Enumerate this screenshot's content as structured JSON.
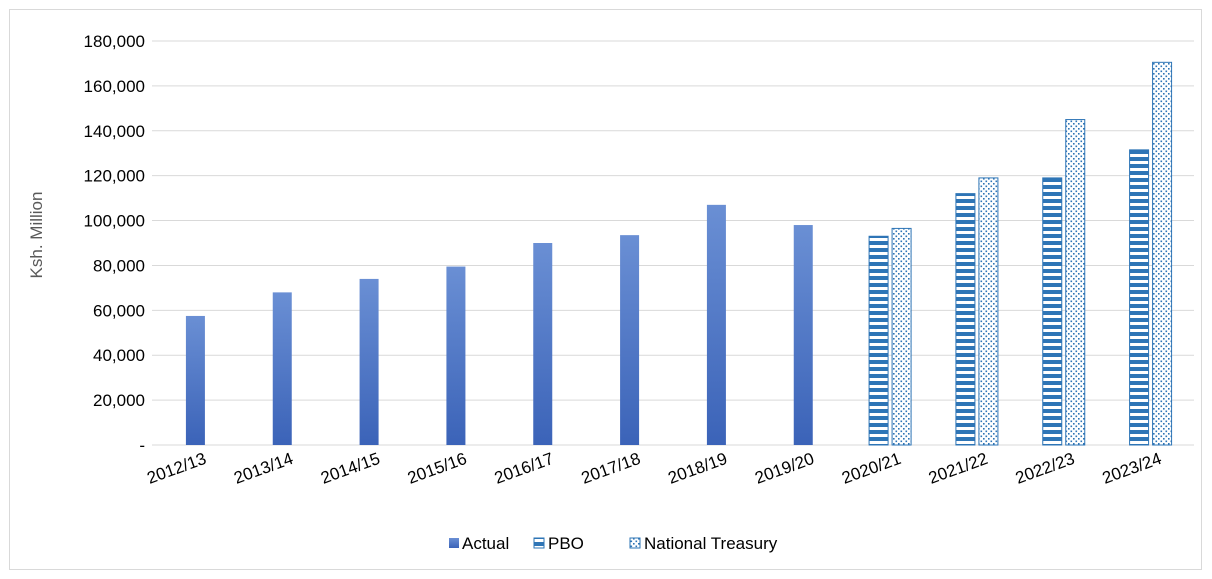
{
  "chart_data": {
    "type": "bar",
    "title": "",
    "xlabel": "",
    "ylabel": "Ksh. Million",
    "ylim": [
      0,
      180000
    ],
    "y_ticks": [
      {
        "value": 0,
        "label": "-"
      },
      {
        "value": 20000,
        "label": "20,000"
      },
      {
        "value": 40000,
        "label": "40,000"
      },
      {
        "value": 60000,
        "label": "60,000"
      },
      {
        "value": 80000,
        "label": "80,000"
      },
      {
        "value": 100000,
        "label": "100,000"
      },
      {
        "value": 120000,
        "label": "120,000"
      },
      {
        "value": 140000,
        "label": "140,000"
      },
      {
        "value": 160000,
        "label": "160,000"
      },
      {
        "value": 180000,
        "label": "180,000"
      }
    ],
    "categories": [
      "2012/13",
      "2013/14",
      "2014/15",
      "2015/16",
      "2016/17",
      "2017/18",
      "2018/19",
      "2019/20",
      "2020/21",
      "2021/22",
      "2022/23",
      "2023/24"
    ],
    "series": [
      {
        "name": "Actual",
        "pattern": "solid",
        "color": "#4472c4",
        "values": [
          57500,
          68000,
          74000,
          79500,
          90000,
          93500,
          107000,
          98000,
          null,
          null,
          null,
          null
        ]
      },
      {
        "name": "PBO",
        "pattern": "horizontal-stripes",
        "color": "#2e75b6",
        "values": [
          null,
          null,
          null,
          null,
          null,
          null,
          null,
          null,
          93000,
          112000,
          119000,
          131500
        ]
      },
      {
        "name": "National Treasury",
        "pattern": "dots",
        "color": "#2e75b6",
        "values": [
          null,
          null,
          null,
          null,
          null,
          null,
          null,
          null,
          96500,
          119000,
          145000,
          170500
        ]
      }
    ],
    "legend_position": "bottom",
    "grid": true
  }
}
